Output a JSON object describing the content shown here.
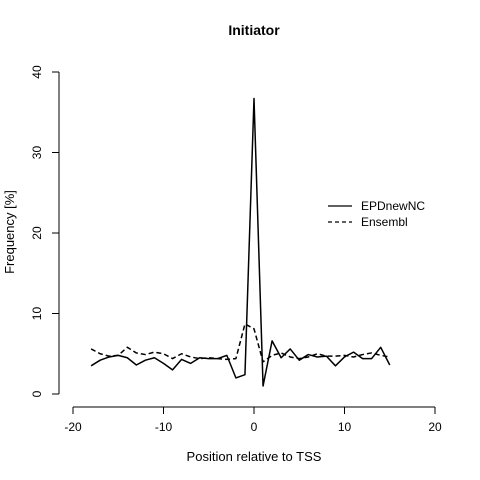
{
  "chart_data": {
    "type": "line",
    "title": "Initiator",
    "xlabel": "Position relative to TSS",
    "ylabel": "Frequency [%]",
    "xlim": [
      -20,
      20
    ],
    "ylim": [
      0,
      40
    ],
    "x_ticks": [
      -20,
      -10,
      0,
      10,
      20
    ],
    "y_ticks": [
      0,
      10,
      20,
      30,
      40
    ],
    "legend_position": "right",
    "x": [
      -18,
      -17,
      -16,
      -15,
      -14,
      -13,
      -12,
      -11,
      -10,
      -9,
      -8,
      -7,
      -6,
      -5,
      -4,
      -3,
      -2,
      -1,
      0,
      1,
      2,
      3,
      4,
      5,
      6,
      7,
      8,
      9,
      10,
      11,
      12,
      13,
      14,
      15
    ],
    "series": [
      {
        "name": "EPDnewNC",
        "line_style": "solid",
        "color": "#000000",
        "values": [
          3.5,
          4.2,
          4.6,
          4.8,
          4.5,
          3.6,
          4.2,
          4.5,
          3.8,
          3.0,
          4.3,
          3.8,
          4.5,
          4.4,
          4.4,
          4.8,
          2.0,
          2.4,
          36.7,
          1.0,
          6.6,
          4.5,
          5.6,
          4.2,
          4.9,
          4.6,
          4.7,
          3.5,
          4.6,
          5.2,
          4.4,
          4.4,
          5.8,
          3.6
        ]
      },
      {
        "name": "Ensembl",
        "line_style": "dashed",
        "color": "#000000",
        "values": [
          5.6,
          5.0,
          4.7,
          4.8,
          5.8,
          5.1,
          4.9,
          5.2,
          5.0,
          4.4,
          5.0,
          4.6,
          4.4,
          4.5,
          4.4,
          4.3,
          4.4,
          8.7,
          8.1,
          4.0,
          4.8,
          5.1,
          4.6,
          4.4,
          4.6,
          5.0,
          4.7,
          4.7,
          4.8,
          4.6,
          4.9,
          5.1,
          4.8,
          4.6
        ]
      }
    ]
  }
}
